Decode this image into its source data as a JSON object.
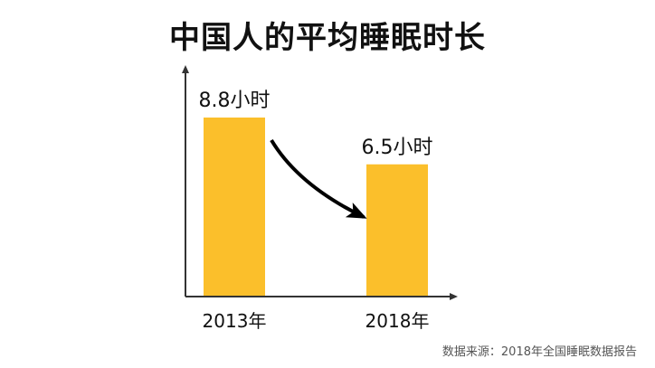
{
  "chart_data": {
    "type": "bar",
    "title": "中国人的平均睡眠时长",
    "categories": [
      "2013年",
      "2018年"
    ],
    "values": [
      8.8,
      6.5
    ],
    "data_labels": [
      "8.8小时",
      "6.5小时"
    ],
    "bar_color": "#FBBF2B",
    "axis_color": "#333333",
    "arrow_color": "#000000",
    "annotation": "decreasing-arrow-from-first-to-second-bar",
    "grid": false,
    "legend": "none"
  },
  "source_text": "数据来源：2018年全国睡眠数据报告"
}
